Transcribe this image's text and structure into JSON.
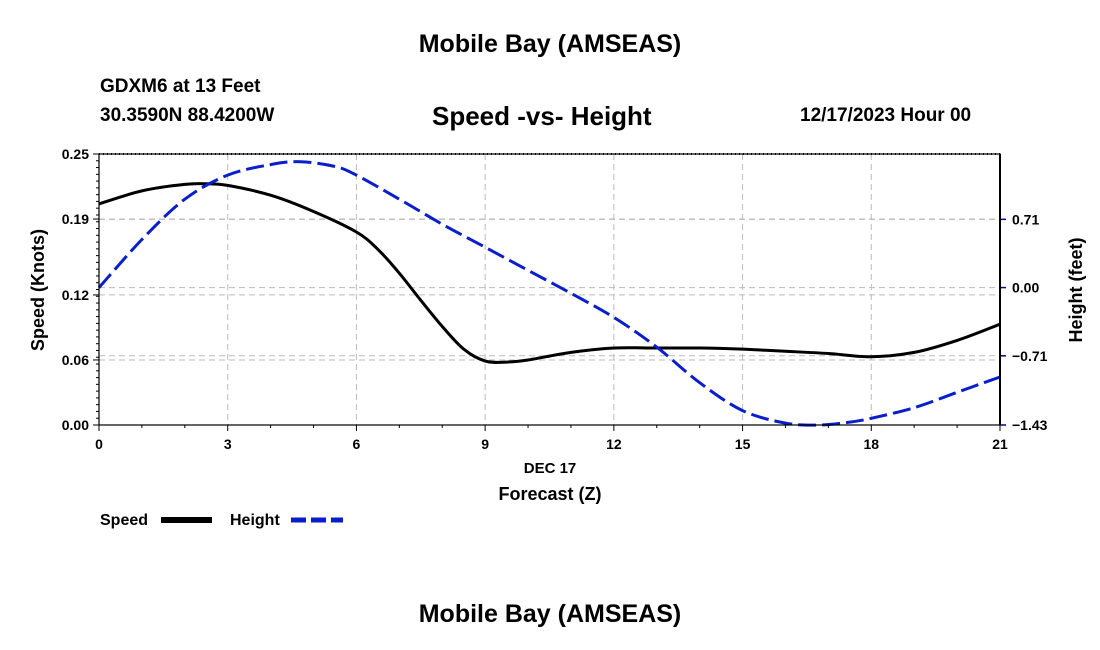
{
  "header": {
    "title": "Mobile Bay (AMSEAS)",
    "station": "GDXM6 at 13 Feet",
    "coords": "30.3590N  88.4200W",
    "subtitle": "Speed -vs- Height",
    "datetime": "12/17/2023 Hour 00"
  },
  "footer": {
    "title": "Mobile Bay (AMSEAS)"
  },
  "colors": {
    "speed": "#000000",
    "height": "#0a1ecc",
    "grid": "#bbbbbb"
  },
  "chart_data": {
    "type": "line",
    "title": "Speed -vs- Height",
    "xlabel": "Forecast (Z)",
    "xdate": "DEC 17",
    "ylabel": "Speed (Knots)",
    "y2label": "Height (feet)",
    "xlim": [
      0,
      21
    ],
    "ylim": [
      0,
      0.25
    ],
    "y2lim": [
      -1.43,
      1.39
    ],
    "xticks": [
      0,
      3,
      6,
      9,
      12,
      15,
      18,
      21
    ],
    "xtick_labels": [
      "0",
      "3",
      "6",
      "9",
      "12",
      "15",
      "18",
      "21"
    ],
    "yticks": [
      0.0,
      0.06,
      0.12,
      0.19,
      0.25
    ],
    "ytick_labels": [
      "0.00",
      "0.06",
      "0.12",
      "0.19",
      "0.25"
    ],
    "y2ticks": [
      -1.43,
      -0.71,
      0.0,
      0.71
    ],
    "y2tick_labels": [
      "−1.43",
      "−0.71",
      "0.00",
      "0.71"
    ],
    "grid": true,
    "legend": [
      "Speed",
      "Height"
    ],
    "series": [
      {
        "name": "Speed",
        "axis": "left",
        "style": "solid",
        "x": [
          0,
          1,
          2,
          2.5,
          3,
          4,
          5,
          6,
          6.5,
          7,
          7.5,
          8,
          8.5,
          9,
          9.5,
          10,
          11,
          12,
          13,
          14,
          15,
          16,
          17,
          18,
          19,
          20,
          21
        ],
        "values": [
          0.204,
          0.216,
          0.222,
          0.2225,
          0.221,
          0.212,
          0.197,
          0.178,
          0.162,
          0.14,
          0.115,
          0.091,
          0.07,
          0.059,
          0.058,
          0.06,
          0.067,
          0.071,
          0.071,
          0.071,
          0.07,
          0.068,
          0.066,
          0.063,
          0.067,
          0.078,
          0.093
        ]
      },
      {
        "name": "Height",
        "axis": "right",
        "style": "dashed",
        "x": [
          0,
          1,
          2,
          3,
          4,
          4.7,
          5.5,
          6,
          7,
          8,
          9,
          10,
          11,
          12,
          13,
          14,
          15,
          16,
          16.8,
          17.5,
          18,
          19,
          20,
          21
        ],
        "values": [
          0.0,
          0.5,
          0.92,
          1.17,
          1.28,
          1.31,
          1.26,
          1.17,
          0.92,
          0.66,
          0.42,
          0.18,
          -0.06,
          -0.31,
          -0.62,
          -0.99,
          -1.28,
          -1.41,
          -1.43,
          -1.4,
          -1.36,
          -1.25,
          -1.09,
          -0.93
        ]
      }
    ]
  }
}
